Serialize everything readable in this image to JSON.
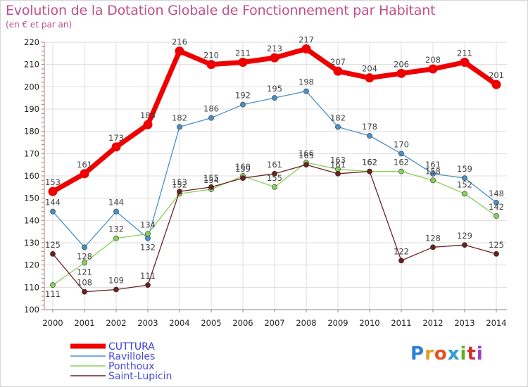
{
  "title": "Evolution de la Dotation Globale de Fonctionnement par Habitant",
  "subtitle": "(en € et par an)",
  "logo": {
    "text": "Proxiti",
    "letter_colors": [
      "#2a7fd4",
      "#e0a020",
      "#e85020",
      "#2a9fd4",
      "#60b020",
      "#d03030",
      "#9a40c0"
    ]
  },
  "chart_data": {
    "type": "line",
    "title": "Evolution de la Dotation Globale de Fonctionnement par Habitant",
    "subtitle": "(en € et par an)",
    "x": [
      2000,
      2001,
      2002,
      2003,
      2004,
      2005,
      2006,
      2007,
      2008,
      2009,
      2010,
      2011,
      2012,
      2013,
      2014
    ],
    "x_tick_labels": [
      "2000",
      "2001",
      "2002",
      "2003",
      "2004",
      "2005",
      "2006",
      "2007",
      "2008",
      "2009",
      "2010",
      "2011",
      "2012",
      "2013",
      "2014"
    ],
    "ylim": [
      100,
      220
    ],
    "y_ticks": [
      100,
      110,
      120,
      130,
      140,
      150,
      160,
      170,
      180,
      190,
      200,
      210,
      220
    ],
    "y_tick_labels": [
      "100",
      "110",
      "120",
      "130",
      "140",
      "150",
      "160",
      "170",
      "180",
      "190",
      "200",
      "210",
      "220"
    ],
    "grid": true,
    "legend_position": "bottom-left",
    "series": [
      {
        "name": "CUTTURA",
        "color": "#ee0000",
        "emphasis": true,
        "values": [
          153,
          161,
          173,
          183,
          216,
          210,
          211,
          213,
          217,
          207,
          204,
          206,
          208,
          211,
          201
        ],
        "labels": [
          "153",
          "161",
          "173",
          "183",
          "216",
          "210",
          "211",
          "213",
          "217",
          "207",
          "204",
          "206",
          "208",
          "211",
          "201"
        ]
      },
      {
        "name": "Ravilloles",
        "color": "#4a90c8",
        "emphasis": false,
        "values": [
          144,
          128,
          144,
          132,
          182,
          186,
          192,
          195,
          198,
          182,
          178,
          170,
          161,
          159,
          148
        ],
        "labels": [
          "144",
          "128",
          "144",
          "132",
          "182",
          "186",
          "192",
          "195",
          "198",
          "182",
          "178",
          "170",
          "161",
          "159",
          "148"
        ]
      },
      {
        "name": "Ponthoux",
        "color": "#88d058",
        "emphasis": false,
        "values": [
          111,
          121,
          132,
          134,
          152,
          154,
          160,
          155,
          166,
          163,
          162,
          162,
          158,
          152,
          142
        ],
        "labels": [
          "111",
          "121",
          "132",
          "134",
          "152",
          "154",
          "160",
          "155",
          "166",
          "163",
          "162",
          "162",
          "158",
          "152",
          "142"
        ]
      },
      {
        "name": "Saint-Lupicin",
        "color": "#6e2020",
        "emphasis": false,
        "values": [
          125,
          108,
          109,
          111,
          153,
          155,
          159,
          161,
          165,
          161,
          162,
          122,
          128,
          129,
          125
        ],
        "labels": [
          "125",
          "108",
          "109",
          "111",
          "153",
          "155",
          "159",
          "161",
          "165",
          "161",
          "162",
          "122",
          "128",
          "129",
          "125"
        ]
      }
    ]
  }
}
